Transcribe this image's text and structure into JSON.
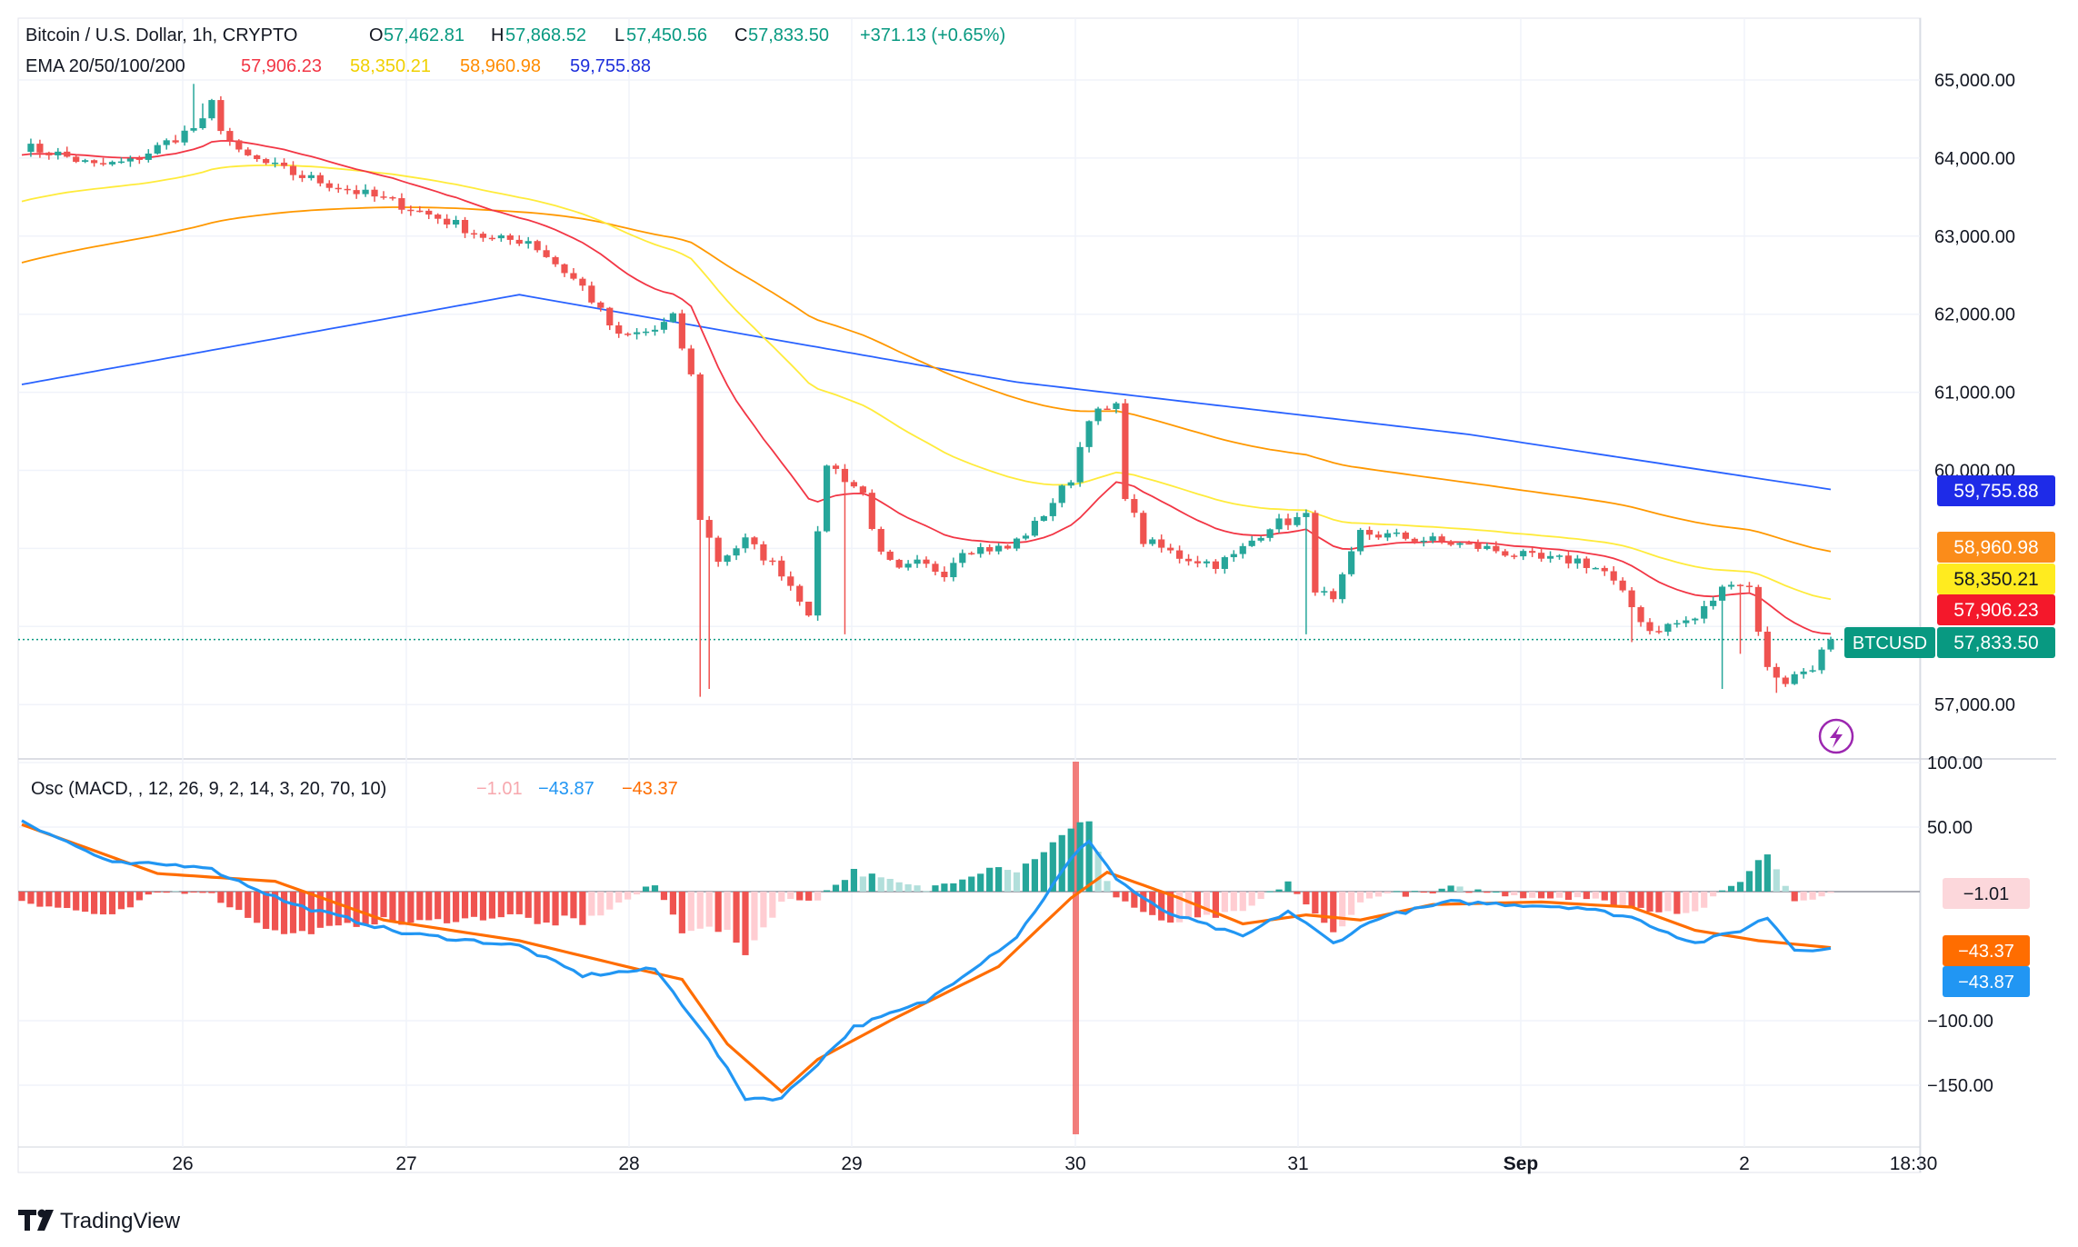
{
  "header": {
    "symbol": "Bitcoin / U.S. Dollar, 1h, CRYPTO",
    "o_label": "O",
    "o": "57,462.81",
    "h_label": "H",
    "h": "57,868.52",
    "l_label": "L",
    "l": "57,450.56",
    "c_label": "C",
    "c": "57,833.50",
    "change": "+371.13 (+0.65%)",
    "ema_label": "EMA 20/50/100/200",
    "ema20": "57,906.23",
    "ema50": "58,350.21",
    "ema100": "58,960.98",
    "ema200": "59,755.88"
  },
  "osc_header": {
    "label": "Osc (MACD, , 12, 26, 9, 2, 14, 3, 20, 70, 10)",
    "v1": "−1.01",
    "v2": "−43.87",
    "v3": "−43.37"
  },
  "price_badges": {
    "ticker": "BTCUSD",
    "last": "57,833.50",
    "ema20": "57,906.23",
    "ema50": "58,350.21",
    "ema100": "58,960.98",
    "ema200": "59,755.88"
  },
  "osc_badges": {
    "hist": "−1.01",
    "signal": "−43.37",
    "macd": "−43.87"
  },
  "branding": {
    "name": "TradingView"
  },
  "colors": {
    "up": "#26a69a",
    "down": "#ef5350",
    "ema20": "#f23645",
    "ema50": "#ffeb3b",
    "ema100": "#ff9800",
    "ema200": "#2962ff",
    "macd": "#2196f3",
    "signal": "#ff6d00"
  },
  "chart_data": {
    "type": "candlestick",
    "interval": "1h",
    "x_ticks": [
      "26",
      "27",
      "28",
      "29",
      "30",
      "31",
      "Sep",
      "2",
      "18:30"
    ],
    "price_axis": {
      "ticks": [
        "65,000.00",
        "64,000.00",
        "63,000.00",
        "62,000.00",
        "61,000.00",
        "60,000.00",
        "57,000.00"
      ],
      "range": [
        56300,
        65800
      ]
    },
    "osc_axis": {
      "ticks": [
        "100.00",
        "50.00",
        "−100.00",
        "−150.00"
      ],
      "range": [
        -180,
        100
      ]
    },
    "price_keypoints": [
      [
        0,
        64150
      ],
      [
        4,
        64050
      ],
      [
        8,
        63900
      ],
      [
        12,
        63950
      ],
      [
        16,
        64200
      ],
      [
        20,
        64450
      ],
      [
        21,
        64700
      ],
      [
        22,
        64400
      ],
      [
        24,
        64050
      ],
      [
        30,
        63800
      ],
      [
        36,
        63600
      ],
      [
        42,
        63400
      ],
      [
        48,
        63150
      ],
      [
        52,
        62950
      ],
      [
        56,
        62950
      ],
      [
        62,
        62350
      ],
      [
        66,
        61700
      ],
      [
        70,
        61800
      ],
      [
        72,
        61950
      ],
      [
        74,
        61200
      ],
      [
        75,
        59400
      ],
      [
        77,
        58850
      ],
      [
        80,
        59100
      ],
      [
        84,
        58700
      ],
      [
        87,
        58200
      ],
      [
        89,
        60100
      ],
      [
        93,
        59700
      ],
      [
        95,
        58900
      ],
      [
        97,
        58700
      ],
      [
        99,
        58800
      ],
      [
        102,
        58700
      ],
      [
        104,
        59000
      ],
      [
        109,
        59000
      ],
      [
        112,
        59300
      ],
      [
        116,
        59900
      ],
      [
        118,
        60700
      ],
      [
        121,
        60800
      ],
      [
        122,
        59700
      ],
      [
        124,
        59100
      ],
      [
        128,
        58900
      ],
      [
        132,
        58800
      ],
      [
        134,
        58900
      ],
      [
        138,
        59300
      ],
      [
        142,
        59400
      ],
      [
        143,
        58500
      ],
      [
        145,
        58300
      ],
      [
        148,
        59200
      ],
      [
        152,
        59150
      ],
      [
        156,
        59100
      ],
      [
        162,
        59000
      ],
      [
        168,
        58850
      ],
      [
        172,
        58850
      ],
      [
        175,
        58700
      ],
      [
        178,
        58250
      ],
      [
        180,
        57950
      ],
      [
        185,
        58100
      ],
      [
        189,
        58600
      ],
      [
        191,
        58500
      ],
      [
        193,
        57450
      ],
      [
        195,
        57300
      ],
      [
        198,
        57500
      ],
      [
        200,
        57833.5
      ]
    ],
    "series": [
      {
        "name": "EMA 20",
        "period": 20,
        "last": 57906.23
      },
      {
        "name": "EMA 50",
        "period": 50,
        "last": 58350.21
      },
      {
        "name": "EMA 100",
        "period": 100,
        "last": 58960.98
      },
      {
        "name": "EMA 200",
        "period": 200,
        "last": 59755.88
      }
    ],
    "ema200_keypoints": [
      [
        0,
        61100
      ],
      [
        55,
        62250
      ],
      [
        110,
        61130
      ],
      [
        160,
        60460
      ],
      [
        200,
        59755.88
      ]
    ],
    "macd_keypoints": [
      [
        0,
        55
      ],
      [
        10,
        22
      ],
      [
        20,
        20
      ],
      [
        30,
        -10
      ],
      [
        42,
        -32
      ],
      [
        55,
        -42
      ],
      [
        62,
        -65
      ],
      [
        70,
        -60
      ],
      [
        75,
        -105
      ],
      [
        80,
        -160
      ],
      [
        84,
        -160
      ],
      [
        88,
        -133
      ],
      [
        92,
        -105
      ],
      [
        100,
        -85
      ],
      [
        110,
        -35
      ],
      [
        116,
        25
      ],
      [
        118,
        40
      ],
      [
        121,
        10
      ],
      [
        126,
        -15
      ],
      [
        135,
        -35
      ],
      [
        140,
        -15
      ],
      [
        145,
        -40
      ],
      [
        150,
        -20
      ],
      [
        158,
        -8
      ],
      [
        165,
        -10
      ],
      [
        172,
        -12
      ],
      [
        178,
        -20
      ],
      [
        185,
        -40
      ],
      [
        190,
        -30
      ],
      [
        193,
        -20
      ],
      [
        196,
        -45
      ],
      [
        200,
        -43.87
      ]
    ],
    "signal_keypoints": [
      [
        0,
        52
      ],
      [
        15,
        14
      ],
      [
        28,
        8
      ],
      [
        40,
        -22
      ],
      [
        55,
        -38
      ],
      [
        68,
        -60
      ],
      [
        73,
        -68
      ],
      [
        78,
        -118
      ],
      [
        84,
        -155
      ],
      [
        88,
        -130
      ],
      [
        96,
        -100
      ],
      [
        108,
        -58
      ],
      [
        116,
        -5
      ],
      [
        120,
        15
      ],
      [
        128,
        -5
      ],
      [
        135,
        -25
      ],
      [
        142,
        -18
      ],
      [
        148,
        -22
      ],
      [
        156,
        -10
      ],
      [
        168,
        -8
      ],
      [
        178,
        -12
      ],
      [
        185,
        -30
      ],
      [
        192,
        -38
      ],
      [
        200,
        -43.37
      ]
    ],
    "signal_last": -43.37,
    "macd_last": -43.87,
    "hist_last": -1.01
  }
}
